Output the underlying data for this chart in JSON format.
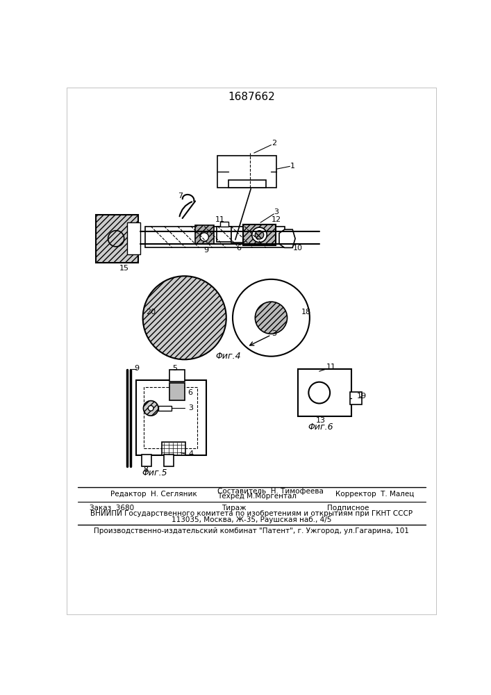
{
  "title": "1687662",
  "fig4_label": "Φиг.4",
  "fig5_label": "Φиг.5",
  "fig6_label": "Φиг.6",
  "footer": {
    "editor": "Редактор  Н. Сегляник",
    "composer": "Составитель  Н. Тимофеева",
    "techred": "Техред М.Моргентал",
    "corrector": "Корректор  Т. Малец",
    "order": "Заказ  3680",
    "tirazh": "Тираж",
    "podpisnoe": "Подписное",
    "vniipи": "ВНИИПИ Государственного комитета по изобретениям и открытиям при ГКНТ СССР",
    "address": "113035, Москва, Ж-35, Раушская наб., 4/5",
    "patent": "Производственно-издательский комбинат \"Патент\", г. Ужгород, ул.Гагарина, 101"
  }
}
